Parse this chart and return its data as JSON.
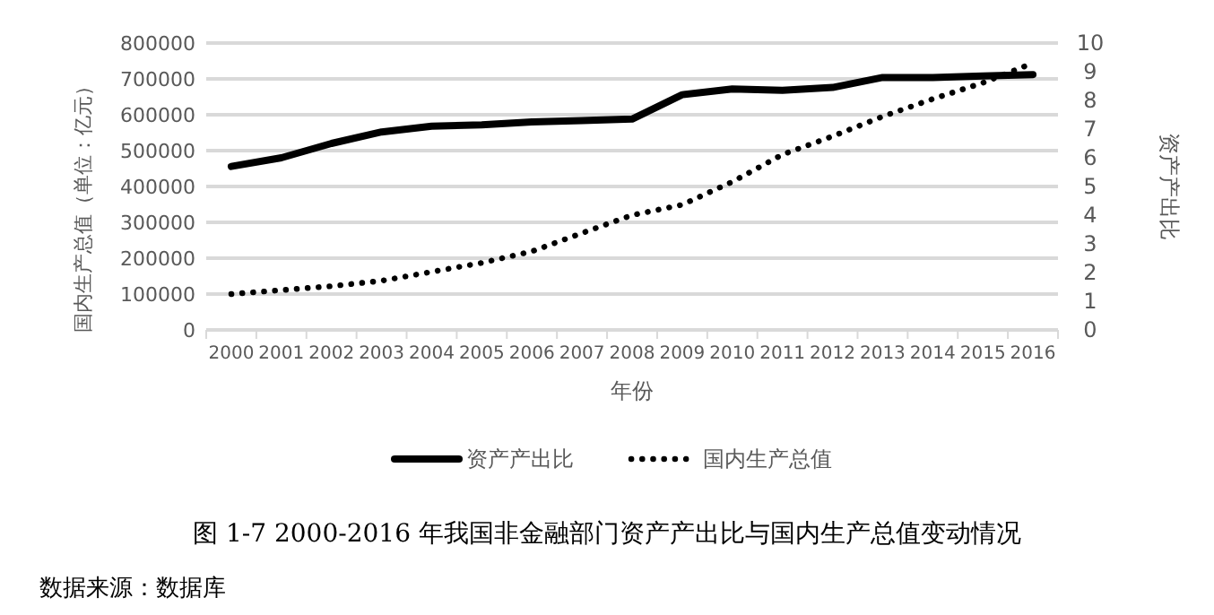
{
  "chart_data": {
    "type": "line",
    "title": "图 1-7 2000-2016 年我国非金融部门资产产出比与国内生产总值变动情况",
    "xlabel": "年份",
    "ylabel": "国内生产总值（单位：亿元）",
    "y2label": "资产产出比",
    "categories": [
      "2000",
      "2001",
      "2002",
      "2003",
      "2004",
      "2005",
      "2006",
      "2007",
      "2008",
      "2009",
      "2010",
      "2011",
      "2012",
      "2013",
      "2014",
      "2015",
      "2016"
    ],
    "series": [
      {
        "name": "资产产出比",
        "color": "#000000",
        "axis": "y2",
        "line_style": "solid",
        "values": [
          5.7,
          6.0,
          6.5,
          6.9,
          7.1,
          7.15,
          7.25,
          7.3,
          7.35,
          8.2,
          8.4,
          8.35,
          8.45,
          8.8,
          8.8,
          8.85,
          8.9
        ]
      },
      {
        "name": "国内生产总值",
        "color": "#000000",
        "line_style": "dotted",
        "values": [
          100000,
          111000,
          122000,
          137000,
          162000,
          187000,
          219000,
          270000,
          320000,
          349000,
          413000,
          489000,
          540000,
          595000,
          644000,
          689000,
          744000
        ]
      }
    ],
    "ylim": [
      0,
      800000
    ],
    "yticks": [
      0,
      100000,
      200000,
      300000,
      400000,
      500000,
      600000,
      700000,
      800000
    ],
    "y2lim": [
      0,
      10
    ],
    "y2ticks": [
      0,
      1,
      2,
      3,
      4,
      5,
      6,
      7,
      8,
      9,
      10
    ],
    "grid": "y",
    "legend": "bottom",
    "annotations": [
      "数据来源：数据库"
    ]
  }
}
